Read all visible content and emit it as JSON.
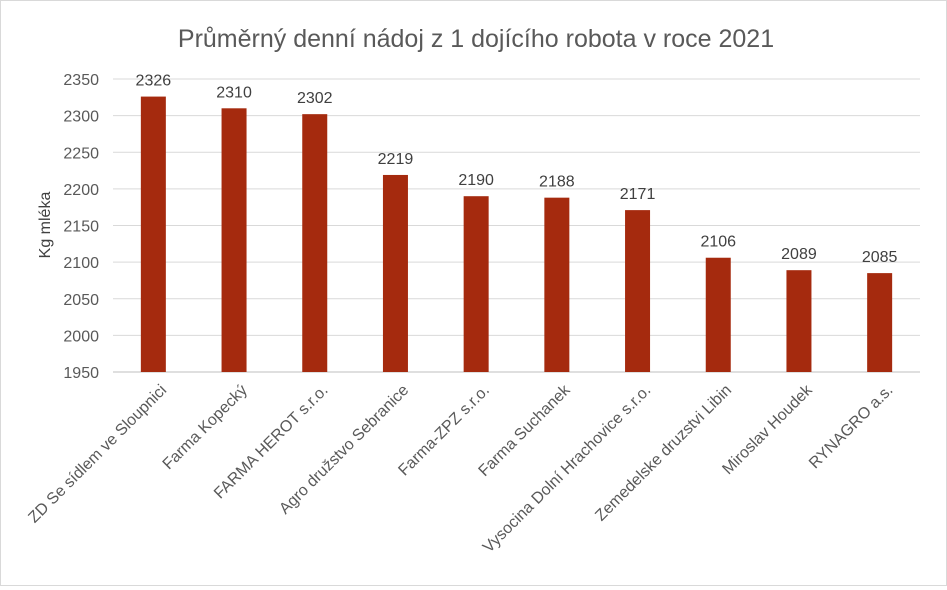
{
  "chart_data": {
    "type": "bar",
    "title": "Průměrný denní nádoj z 1 dojícího robota v roce 2021",
    "ylabel": "Kg mléka",
    "xlabel": "",
    "categories": [
      "ZD Se sídlem ve Sloupnici",
      "Farma Kopecký",
      "FARMA HEROT s.r.o.",
      "Agro družstvo Sebranice",
      "Farma-ZPZ s.r.o.",
      "Farma Suchanek",
      "Vysocina Dolní Hrachovice s.r.o.",
      "Zemedelske druzstvi Libin",
      "Miroslav Houdek",
      "RYNAGRO a.s."
    ],
    "values": [
      2326,
      2310,
      2302,
      2219,
      2190,
      2188,
      2171,
      2106,
      2089,
      2085
    ],
    "ylim": [
      1950,
      2350
    ],
    "yticks": [
      1950,
      2000,
      2050,
      2100,
      2150,
      2200,
      2250,
      2300,
      2350
    ],
    "bar_color": "#a52a0e",
    "grid": true,
    "data_labels": true,
    "legend": "none"
  }
}
